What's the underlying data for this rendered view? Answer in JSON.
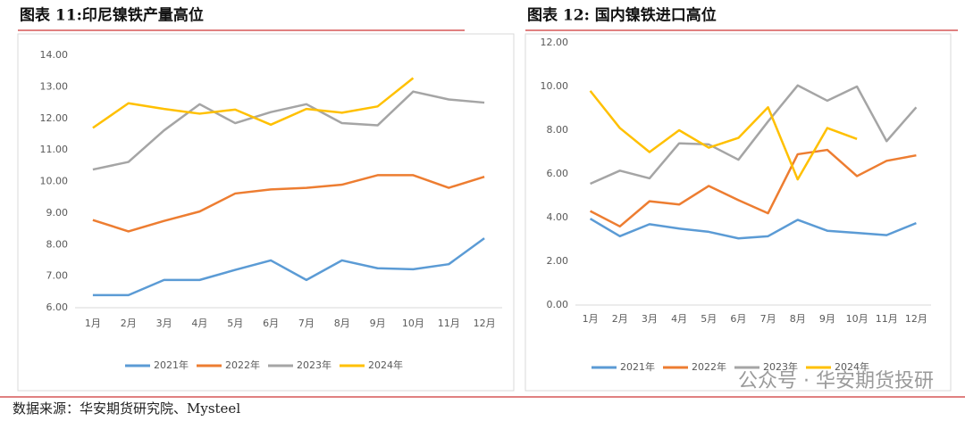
{
  "chart_data": [
    {
      "type": "line",
      "title": "图表 11:印尼镍铁产量高位",
      "categories": [
        "1月",
        "2月",
        "3月",
        "4月",
        "5月",
        "6月",
        "7月",
        "8月",
        "9月",
        "10月",
        "11月",
        "12月"
      ],
      "series": [
        {
          "name": "2021年",
          "color": "#5b9bd5",
          "values": [
            6.4,
            6.4,
            6.88,
            6.88,
            7.2,
            7.5,
            6.88,
            7.5,
            7.25,
            7.22,
            7.38,
            8.2
          ]
        },
        {
          "name": "2022年",
          "color": "#ed7d31",
          "values": [
            8.78,
            8.42,
            8.75,
            9.05,
            9.62,
            9.75,
            9.8,
            9.9,
            10.2,
            10.2,
            9.8,
            10.15
          ]
        },
        {
          "name": "2023年",
          "color": "#a5a5a5",
          "values": [
            10.38,
            10.62,
            11.62,
            12.45,
            11.85,
            12.2,
            12.45,
            11.85,
            11.78,
            12.85,
            12.6,
            12.5
          ]
        },
        {
          "name": "2024年",
          "color": "#ffc000",
          "values": [
            11.7,
            12.48,
            12.3,
            12.15,
            12.28,
            11.8,
            12.3,
            12.18,
            12.38,
            13.28,
            null,
            null
          ]
        }
      ],
      "ylim": [
        6,
        14
      ],
      "yticks": [
        {
          "value": 6,
          "label": "6.00"
        },
        {
          "value": 7,
          "label": "7.00"
        },
        {
          "value": 8,
          "label": "8.00"
        },
        {
          "value": 9,
          "label": "9.00"
        },
        {
          "value": 10,
          "label": "10.00"
        },
        {
          "value": 11,
          "label": "11.00"
        },
        {
          "value": 12,
          "label": "12.00"
        },
        {
          "value": 13,
          "label": "13.00"
        },
        {
          "value": 14,
          "label": "14.00"
        }
      ],
      "grid": false,
      "legend": "bottom"
    },
    {
      "type": "line",
      "title": "图表 12: 国内镍铁进口高位",
      "categories": [
        "1月",
        "2月",
        "3月",
        "4月",
        "5月",
        "6月",
        "7月",
        "8月",
        "9月",
        "10月",
        "11月",
        "12月"
      ],
      "series": [
        {
          "name": "2021年",
          "color": "#5b9bd5",
          "values": [
            3.95,
            3.15,
            3.7,
            3.5,
            3.35,
            3.05,
            3.15,
            3.9,
            3.4,
            3.3,
            3.2,
            3.75
          ]
        },
        {
          "name": "2022年",
          "color": "#ed7d31",
          "values": [
            4.3,
            3.6,
            4.75,
            4.6,
            5.45,
            4.8,
            4.2,
            6.9,
            7.1,
            5.9,
            6.6,
            6.85
          ]
        },
        {
          "name": "2023年",
          "color": "#a5a5a5",
          "values": [
            5.55,
            6.15,
            5.8,
            7.4,
            7.35,
            6.65,
            8.4,
            10.05,
            9.35,
            10.0,
            7.5,
            9.05
          ]
        },
        {
          "name": "2024年",
          "color": "#ffc000",
          "values": [
            9.8,
            8.1,
            7.0,
            8.0,
            7.2,
            7.65,
            9.05,
            5.75,
            8.1,
            7.6,
            null,
            null
          ]
        }
      ],
      "ylim": [
        0,
        12
      ],
      "yticks": [
        {
          "value": 0,
          "label": "0.00"
        },
        {
          "value": 2,
          "label": "2.00"
        },
        {
          "value": 4,
          "label": "4.00"
        },
        {
          "value": 6,
          "label": "6.00"
        },
        {
          "value": 8,
          "label": "8.00"
        },
        {
          "value": 10,
          "label": "10.00"
        },
        {
          "value": 12,
          "label": "12.00"
        }
      ],
      "grid": false,
      "legend": "bottom"
    }
  ],
  "source": "数据来源：华安期货研究院、Mysteel",
  "watermark": "公众号 · 华安期货投研"
}
